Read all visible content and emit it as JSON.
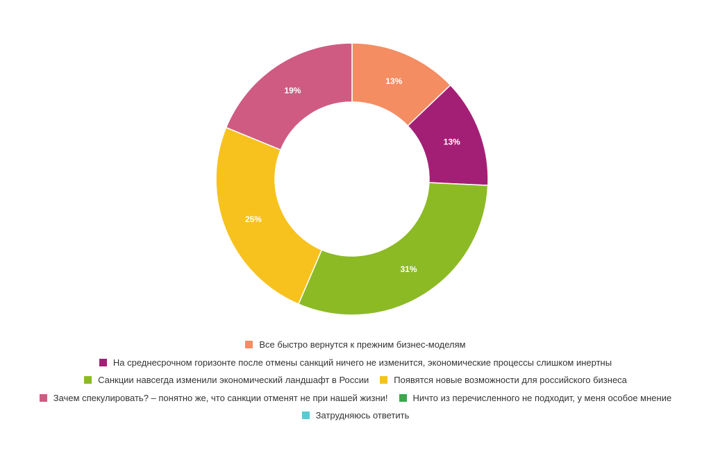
{
  "chart_data": {
    "type": "pie",
    "title": "",
    "donut": true,
    "legend_position": "bottom",
    "categories": [
      "Все быстро вернутся к прежним бизнес-моделям",
      "На среднесрочном горизонте после отмены санкций ничего не изменится, экономические процессы слишком инертны",
      "Санкции навсегда изменили экономический ландшафт в России",
      "Появятся новые возможности для российского бизнеса",
      "Зачем спекулировать? – понятно же, что санкции отменят не при нашей жизни!",
      "Ничто из перечисленного не подходит, у меня особое мнение",
      "Затрудняюсь ответить"
    ],
    "values": [
      13,
      13,
      31,
      25,
      19,
      0,
      0
    ],
    "labels": [
      "13%",
      "13%",
      "31%",
      "25%",
      "19%",
      "",
      ""
    ],
    "colors": [
      "#f48d62",
      "#a31f76",
      "#8cba25",
      "#f7c21e",
      "#cf5b82",
      "#3aa84b",
      "#58cbd3"
    ]
  }
}
